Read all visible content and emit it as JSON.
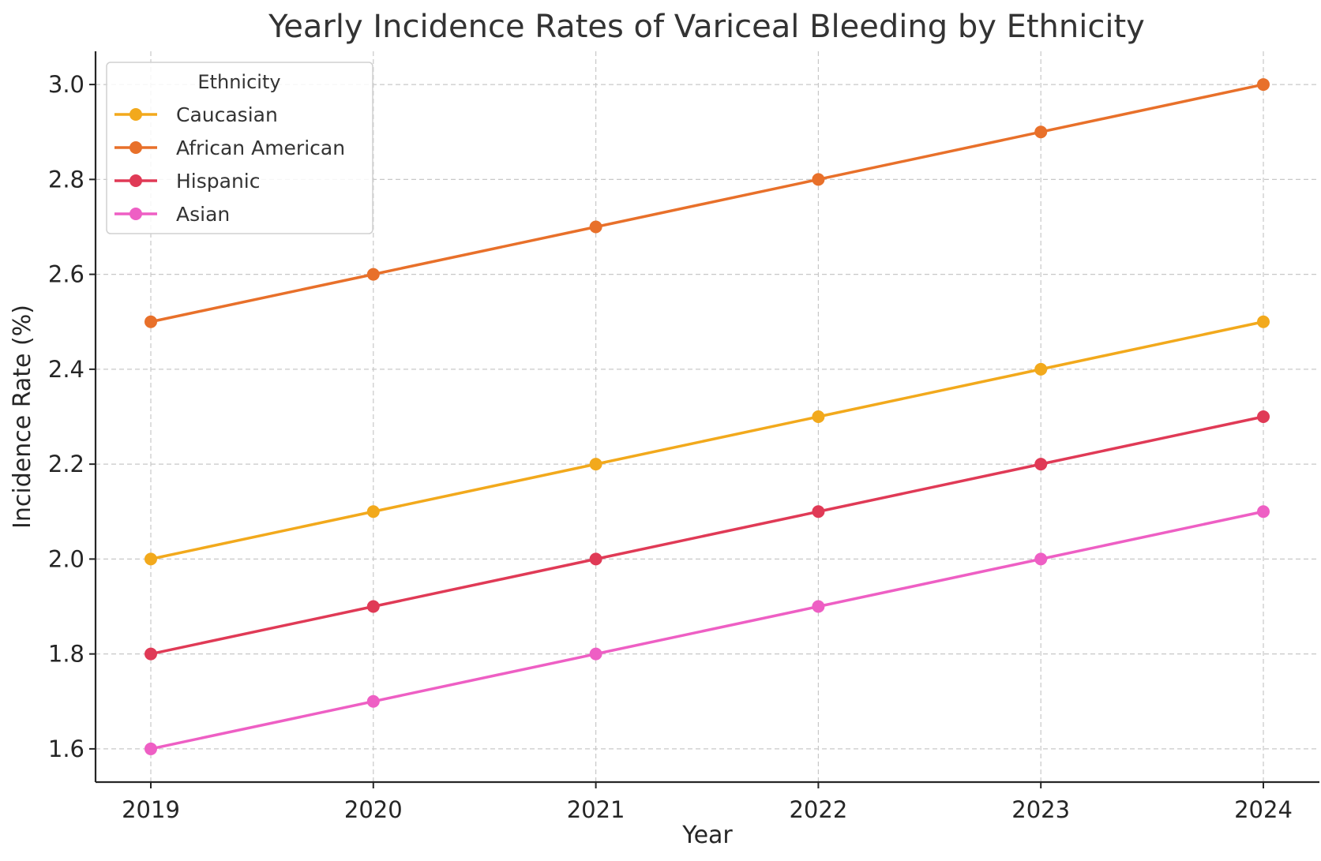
{
  "chart_data": {
    "type": "line",
    "title": "Yearly Incidence Rates of Variceal Bleeding by Ethnicity",
    "xlabel": "Year",
    "ylabel": "Incidence Rate (%)",
    "categories": [
      "2019",
      "2020",
      "2021",
      "2022",
      "2023",
      "2024"
    ],
    "ylim": [
      1.53,
      3.07
    ],
    "yticks": [
      "1.6",
      "1.8",
      "2.0",
      "2.2",
      "2.4",
      "2.6",
      "2.8",
      "3.0"
    ],
    "grid": true,
    "legend": {
      "title": "Ethnicity",
      "position": "top-left"
    },
    "series": [
      {
        "name": "Caucasian",
        "color": "#f2a91c",
        "values": [
          2.0,
          2.1,
          2.2,
          2.3,
          2.4,
          2.5
        ]
      },
      {
        "name": "African American",
        "color": "#e8702a",
        "values": [
          2.5,
          2.6,
          2.7,
          2.8,
          2.9,
          3.0
        ]
      },
      {
        "name": "Hispanic",
        "color": "#e03a56",
        "values": [
          1.8,
          1.9,
          2.0,
          2.1,
          2.2,
          2.3
        ]
      },
      {
        "name": "Asian",
        "color": "#ee5fc4",
        "values": [
          1.6,
          1.7,
          1.8,
          1.9,
          2.0,
          2.1
        ]
      }
    ]
  }
}
